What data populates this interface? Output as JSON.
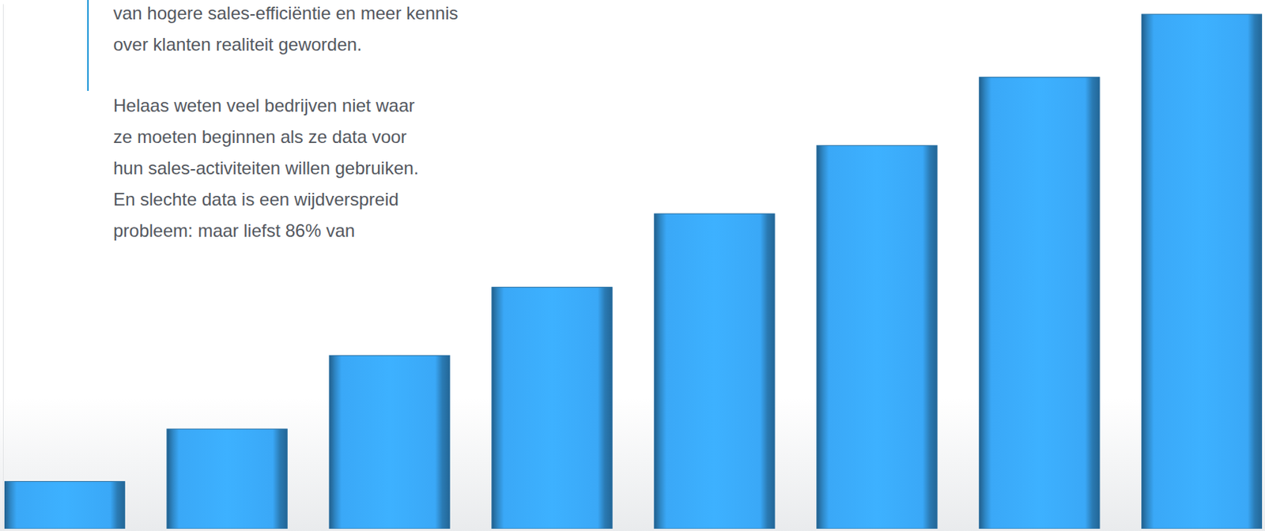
{
  "chart_data": {
    "type": "bar",
    "categories": [
      null,
      null,
      null,
      null,
      null,
      null,
      null,
      null
    ],
    "values": [
      9,
      19,
      33,
      46,
      60,
      73,
      86,
      98
    ],
    "color": "#3aa8f7",
    "ylim": [
      0,
      100
    ],
    "tick_labels": false,
    "annotations": [
      [
        "van hogere sales-efficiëntie en meer kennis",
        "over klanten realiteit geworden."
      ],
      [
        "Helaas weten veel bedrijven niet waar",
        "ze moeten beginnen als ze data voor",
        "hun sales-activiteiten willen gebruiken.",
        "En slechte data is een wijdverspreid",
        "probleem: maar liefst 86% van"
      ]
    ]
  }
}
